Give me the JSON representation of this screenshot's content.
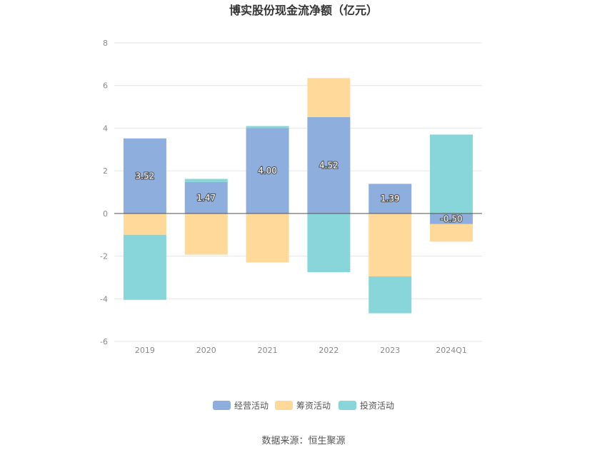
{
  "chart_data": {
    "type": "bar",
    "stacked": true,
    "title": "博实股份现金流净额（亿元）",
    "xlabel": "",
    "ylabel": "",
    "categories": [
      "2019",
      "2020",
      "2021",
      "2022",
      "2023",
      "2024Q1"
    ],
    "ylim": [
      -6,
      8
    ],
    "yticks": [
      8,
      6,
      4,
      2,
      0,
      -2,
      -4,
      -6
    ],
    "grid": true,
    "legend": "bottom-center",
    "series": [
      {
        "name": "经营活动",
        "color": "#8eaedd",
        "values": [
          3.52,
          1.47,
          4.0,
          4.52,
          1.39,
          -0.5
        ],
        "labels": [
          "3.52",
          "1.47",
          "4.00",
          "4.52",
          "1.39",
          "-0.50"
        ]
      },
      {
        "name": "筹资活动",
        "color": "#ffd99a",
        "values": [
          -1.0,
          -1.93,
          -2.3,
          1.83,
          -2.95,
          -0.82
        ]
      },
      {
        "name": "投资活动",
        "color": "#88d6d9",
        "values": [
          -3.05,
          0.15,
          0.1,
          -2.75,
          -1.73,
          3.7
        ]
      }
    ]
  },
  "source": "数据来源：恒生聚源"
}
